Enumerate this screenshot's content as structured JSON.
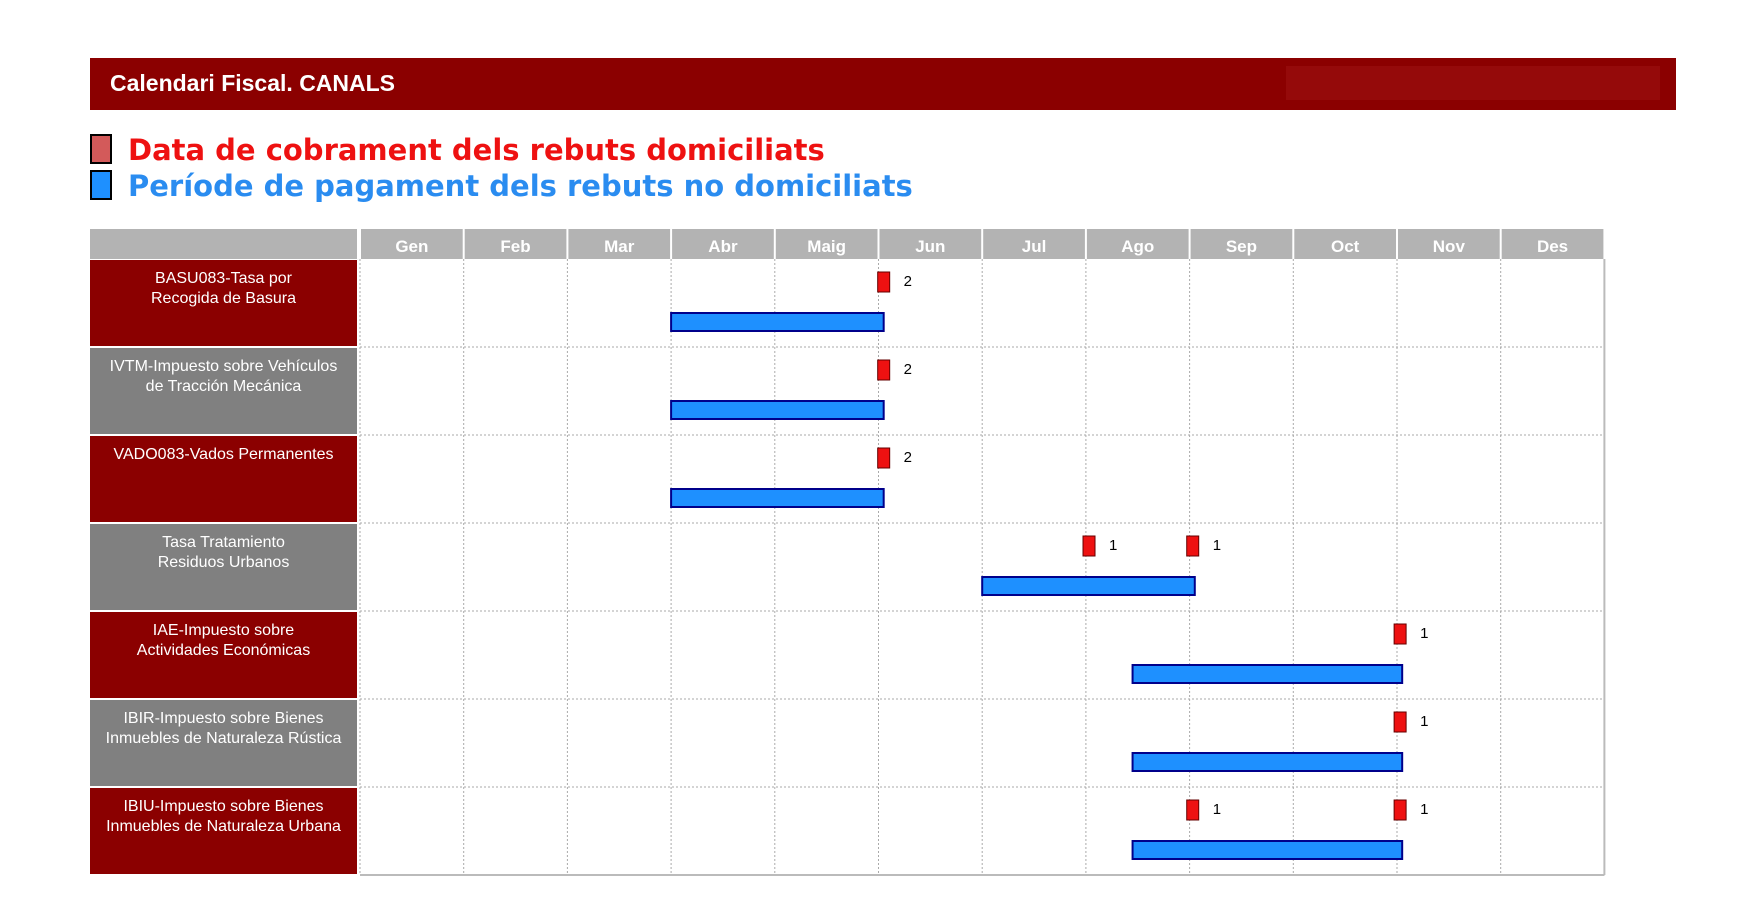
{
  "header": {
    "title": "Calendari Fiscal. CANALS"
  },
  "legend": {
    "red": {
      "label": "Data de cobrament dels rebuts domiciliats",
      "color": "#ee1111",
      "swatch": "#d35a5a"
    },
    "blue": {
      "label": "Període de pagament dels rebuts no domiciliats",
      "color": "#2a8cf0",
      "swatch": "#1e90ff"
    }
  },
  "chart_data": {
    "type": "gantt",
    "months": [
      "Gen",
      "Feb",
      "Mar",
      "Abr",
      "Maig",
      "Jun",
      "Jul",
      "Ago",
      "Sep",
      "Oct",
      "Nov",
      "Des"
    ],
    "rows": [
      {
        "label": [
          "BASU083-Tasa por",
          "Recogida de Basura"
        ],
        "label_bg": "#8b0000",
        "markers": [
          {
            "month": 5.05,
            "label": "2"
          }
        ],
        "period": {
          "start": 3.0,
          "end": 5.05
        }
      },
      {
        "label": [
          "IVTM-Impuesto sobre Vehículos",
          "de Tracción Mecánica"
        ],
        "label_bg": "#808080",
        "markers": [
          {
            "month": 5.05,
            "label": "2"
          }
        ],
        "period": {
          "start": 3.0,
          "end": 5.05
        }
      },
      {
        "label": [
          "VADO083-Vados Permanentes"
        ],
        "label_bg": "#8b0000",
        "markers": [
          {
            "month": 5.05,
            "label": "2"
          }
        ],
        "period": {
          "start": 3.0,
          "end": 5.05
        }
      },
      {
        "label": [
          "Tasa Tratamiento",
          "Residuos Urbanos"
        ],
        "label_bg": "#808080",
        "markers": [
          {
            "month": 7.03,
            "label": "1"
          },
          {
            "month": 8.03,
            "label": "1"
          }
        ],
        "period": {
          "start": 6.0,
          "end": 8.05
        }
      },
      {
        "label": [
          "IAE-Impuesto sobre",
          "Actividades Económicas"
        ],
        "label_bg": "#8b0000",
        "markers": [
          {
            "month": 10.03,
            "label": "1"
          }
        ],
        "period": {
          "start": 7.45,
          "end": 10.05
        }
      },
      {
        "label": [
          "IBIR-Impuesto sobre Bienes",
          "Inmuebles de Naturaleza Rústica"
        ],
        "label_bg": "#808080",
        "markers": [
          {
            "month": 10.03,
            "label": "1"
          }
        ],
        "period": {
          "start": 7.45,
          "end": 10.05
        }
      },
      {
        "label": [
          "IBIU-Impuesto sobre Bienes",
          "Inmuebles de Naturaleza Urbana"
        ],
        "label_bg": "#8b0000",
        "markers": [
          {
            "month": 8.03,
            "label": "1"
          },
          {
            "month": 10.03,
            "label": "1"
          }
        ],
        "period": {
          "start": 7.45,
          "end": 10.05
        }
      }
    ],
    "marker_color": "#ee1111",
    "bar_color": "#1e90ff",
    "bar_border": "#00008b",
    "header_bg": "#b3b3b3"
  }
}
